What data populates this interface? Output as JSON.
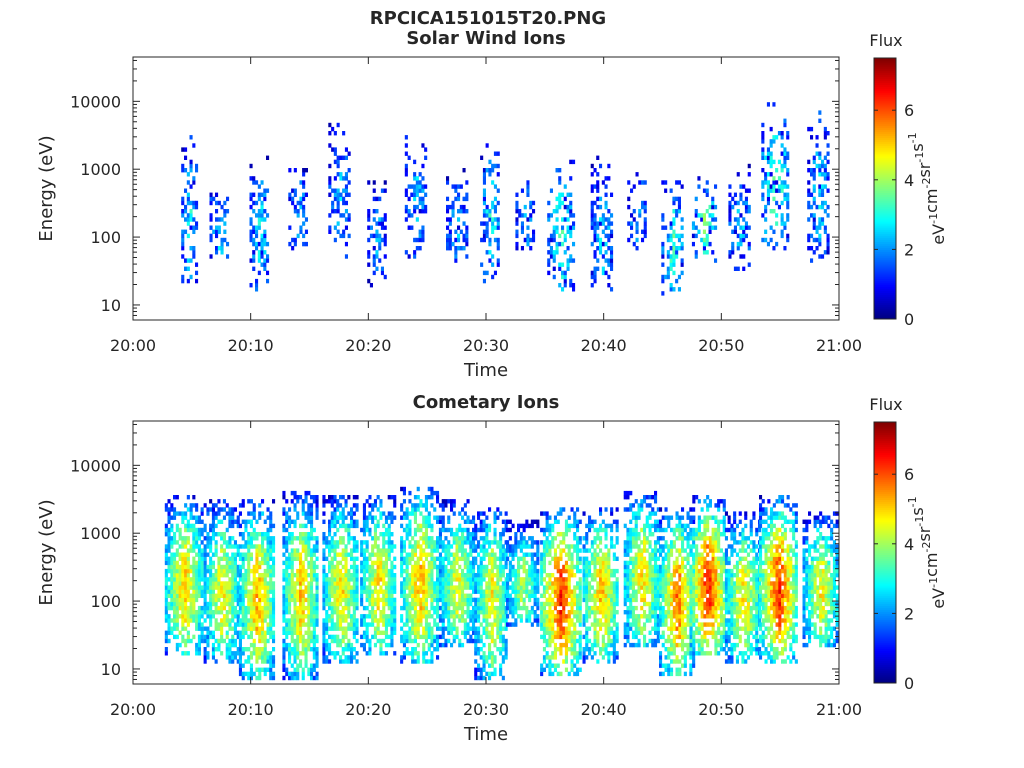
{
  "figure_title": "RPCICA151015T20.PNG",
  "chart_data": [
    {
      "type": "heatmap",
      "title": "Solar Wind Ions",
      "xlabel": "Time",
      "ylabel": "Energy (eV)",
      "yscale": "log",
      "xlim": [
        "20:00",
        "21:00"
      ],
      "ylim": [
        6,
        45000
      ],
      "x_ticks": [
        "20:00",
        "20:10",
        "20:20",
        "20:30",
        "20:40",
        "20:50",
        "21:00"
      ],
      "y_ticks": [
        10,
        100,
        1000,
        10000
      ],
      "y_tick_labels": [
        "10",
        "100",
        "1000",
        "10000"
      ],
      "colorbar": {
        "label": "Flux",
        "units": "eV-1cm-2sr-1s-1",
        "range": [
          0,
          7.5
        ],
        "ticks": [
          0,
          2,
          4,
          6
        ],
        "colormap": "jet"
      },
      "grid": false,
      "bursts": [
        {
          "t": 4.7,
          "dur": 1.2,
          "lo": 20,
          "hi": 3000,
          "peak": 3.0
        },
        {
          "t": 7.3,
          "dur": 1.6,
          "lo": 35,
          "hi": 700,
          "peak": 2.6
        },
        {
          "t": 10.7,
          "dur": 1.6,
          "lo": 15,
          "hi": 1500,
          "peak": 2.8
        },
        {
          "t": 14.0,
          "dur": 1.6,
          "lo": 60,
          "hi": 1500,
          "peak": 2.2
        },
        {
          "t": 17.5,
          "dur": 1.8,
          "lo": 50,
          "hi": 5500,
          "peak": 2.3
        },
        {
          "t": 20.7,
          "dur": 1.6,
          "lo": 18,
          "hi": 1000,
          "peak": 2.2
        },
        {
          "t": 24.0,
          "dur": 1.8,
          "lo": 50,
          "hi": 4500,
          "peak": 2.4
        },
        {
          "t": 27.5,
          "dur": 1.8,
          "lo": 40,
          "hi": 1000,
          "peak": 2.3
        },
        {
          "t": 30.3,
          "dur": 1.6,
          "lo": 20,
          "hi": 2500,
          "peak": 3.0
        },
        {
          "t": 33.3,
          "dur": 1.6,
          "lo": 60,
          "hi": 1000,
          "peak": 2.2
        },
        {
          "t": 36.3,
          "dur": 2.2,
          "lo": 14,
          "hi": 1500,
          "peak": 3.4
        },
        {
          "t": 39.8,
          "dur": 1.8,
          "lo": 15,
          "hi": 1500,
          "peak": 2.6
        },
        {
          "t": 42.8,
          "dur": 1.6,
          "lo": 60,
          "hi": 1500,
          "peak": 2.4
        },
        {
          "t": 45.8,
          "dur": 1.8,
          "lo": 12,
          "hi": 800,
          "peak": 3.3
        },
        {
          "t": 48.5,
          "dur": 2.0,
          "lo": 45,
          "hi": 1000,
          "peak": 3.8
        },
        {
          "t": 51.5,
          "dur": 1.8,
          "lo": 30,
          "hi": 1200,
          "peak": 2.6
        },
        {
          "t": 54.5,
          "dur": 2.2,
          "lo": 60,
          "hi": 10000,
          "peak": 3.8
        },
        {
          "t": 58.2,
          "dur": 1.8,
          "lo": 40,
          "hi": 8000,
          "peak": 2.6
        }
      ]
    },
    {
      "type": "heatmap",
      "title": "Cometary Ions",
      "xlabel": "Time",
      "ylabel": "Energy (eV)",
      "yscale": "log",
      "xlim": [
        "20:00",
        "21:00"
      ],
      "ylim": [
        6,
        45000
      ],
      "x_ticks": [
        "20:00",
        "20:10",
        "20:20",
        "20:30",
        "20:40",
        "20:50",
        "21:00"
      ],
      "y_ticks": [
        10,
        100,
        1000,
        10000
      ],
      "y_tick_labels": [
        "10",
        "100",
        "1000",
        "10000"
      ],
      "colorbar": {
        "label": "Flux",
        "units": "eV-1cm-2sr-1s-1",
        "range": [
          0,
          7.5
        ],
        "ticks": [
          0,
          2,
          4,
          6
        ],
        "colormap": "jet"
      },
      "grid": false,
      "bursts": [
        {
          "t": 4.3,
          "dur": 3.2,
          "lo": 15,
          "hi": 3500,
          "peak": 5.2
        },
        {
          "t": 7.5,
          "dur": 3.0,
          "lo": 12,
          "hi": 3000,
          "peak": 4.8
        },
        {
          "t": 10.5,
          "dur": 3.0,
          "lo": 7,
          "hi": 3000,
          "peak": 5.4
        },
        {
          "t": 14.2,
          "dur": 3.0,
          "lo": 7,
          "hi": 4000,
          "peak": 5.2
        },
        {
          "t": 17.6,
          "dur": 3.0,
          "lo": 12,
          "hi": 3500,
          "peak": 5.0
        },
        {
          "t": 20.8,
          "dur": 3.0,
          "lo": 15,
          "hi": 3500,
          "peak": 5.0
        },
        {
          "t": 24.3,
          "dur": 3.2,
          "lo": 12,
          "hi": 5000,
          "peak": 5.3
        },
        {
          "t": 27.5,
          "dur": 3.0,
          "lo": 20,
          "hi": 3000,
          "peak": 4.7
        },
        {
          "t": 30.4,
          "dur": 2.8,
          "lo": 7,
          "hi": 2500,
          "peak": 4.8
        },
        {
          "t": 33.0,
          "dur": 2.6,
          "lo": 40,
          "hi": 1500,
          "peak": 4.2
        },
        {
          "t": 36.3,
          "dur": 3.4,
          "lo": 8,
          "hi": 2500,
          "peak": 6.4
        },
        {
          "t": 39.7,
          "dur": 3.0,
          "lo": 12,
          "hi": 2500,
          "peak": 5.3
        },
        {
          "t": 43.2,
          "dur": 3.0,
          "lo": 20,
          "hi": 4500,
          "peak": 5.0
        },
        {
          "t": 46.2,
          "dur": 3.0,
          "lo": 8,
          "hi": 2500,
          "peak": 5.8
        },
        {
          "t": 48.8,
          "dur": 3.0,
          "lo": 15,
          "hi": 3500,
          "peak": 6.5
        },
        {
          "t": 51.8,
          "dur": 3.0,
          "lo": 12,
          "hi": 2000,
          "peak": 5.0
        },
        {
          "t": 54.8,
          "dur": 3.2,
          "lo": 12,
          "hi": 3500,
          "peak": 6.3
        },
        {
          "t": 58.4,
          "dur": 3.0,
          "lo": 20,
          "hi": 2000,
          "peak": 4.8
        }
      ]
    }
  ]
}
